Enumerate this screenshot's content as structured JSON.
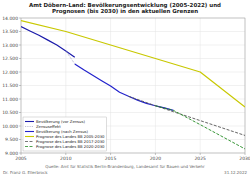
{
  "chart_data": {
    "type": "line",
    "title": "Amt Döbern-Land: Bevölkerungsentwicklung (2005-2022) und\nPrognosen (bis 2030) in den aktuellen Grenzen",
    "xlim": [
      2005,
      2030
    ],
    "ylim": [
      9000,
      14000
    ],
    "xticks": [
      2005,
      2010,
      2015,
      2020,
      2025,
      2030
    ],
    "yticks": [
      {
        "value": 9000,
        "label": "9.000"
      },
      {
        "value": 9500,
        "label": "9.500"
      },
      {
        "value": 10000,
        "label": "10.000"
      },
      {
        "value": 10500,
        "label": "10.500"
      },
      {
        "value": 11000,
        "label": "11.000"
      },
      {
        "value": 11500,
        "label": "11.500"
      },
      {
        "value": 12000,
        "label": "12.000"
      },
      {
        "value": 12500,
        "label": "12.500"
      },
      {
        "value": 13000,
        "label": "13.000"
      },
      {
        "value": 13500,
        "label": "13.500"
      },
      {
        "value": 14000,
        "label": "14.000"
      }
    ],
    "grid": true,
    "legend": "lower left",
    "series": [
      {
        "name": "Bevölkerung (vor Zensus)",
        "color": "#1a1aaa",
        "line_style": "solid",
        "x": [
          2005,
          2006,
          2007,
          2008,
          2009,
          2010,
          2011
        ],
        "values": [
          13680,
          13520,
          13360,
          13180,
          13000,
          12780,
          12550
        ]
      },
      {
        "name": "Zensuseffekt",
        "color": "#9999bb",
        "line_style": "dotted",
        "x": [
          2010,
          2011
        ],
        "values": [
          12780,
          12300
        ]
      },
      {
        "name": "Bevölkerung (nach Zensus)",
        "color": "#2222cc",
        "line_style": "solid",
        "x": [
          2011,
          2012,
          2013,
          2014,
          2015,
          2016,
          2017,
          2018,
          2019,
          2020,
          2021,
          2022
        ],
        "values": [
          12300,
          12080,
          11880,
          11680,
          11480,
          11250,
          11100,
          10960,
          10840,
          10750,
          10670,
          10580
        ]
      },
      {
        "name": "Prognose des Landes BB 2005-2030",
        "color": "#c8c800",
        "line_style": "solid",
        "x": [
          2005,
          2010,
          2015,
          2020,
          2025,
          2030
        ],
        "values": [
          13900,
          13500,
          13000,
          12500,
          12000,
          10700
        ]
      },
      {
        "name": "Prognose des Landes BB 2017-2030",
        "color": "#555555",
        "line_style": "dashed",
        "x": [
          2017,
          2020,
          2025,
          2030
        ],
        "values": [
          11100,
          10750,
          10200,
          9650
        ]
      },
      {
        "name": "Prognose des Landes BB 2020-2030",
        "color": "#228B22",
        "line_style": "dashed",
        "x": [
          2020,
          2022,
          2025,
          2030
        ],
        "values": [
          10750,
          10580,
          10050,
          9150
        ]
      }
    ],
    "annotations": [
      "Dr. Franz G. Ellerbrock",
      "Quelle: Amt für Statistik Berlin-Brandenburg, Landesamt für Bauen und Verkehr",
      "31.12.2022"
    ]
  }
}
